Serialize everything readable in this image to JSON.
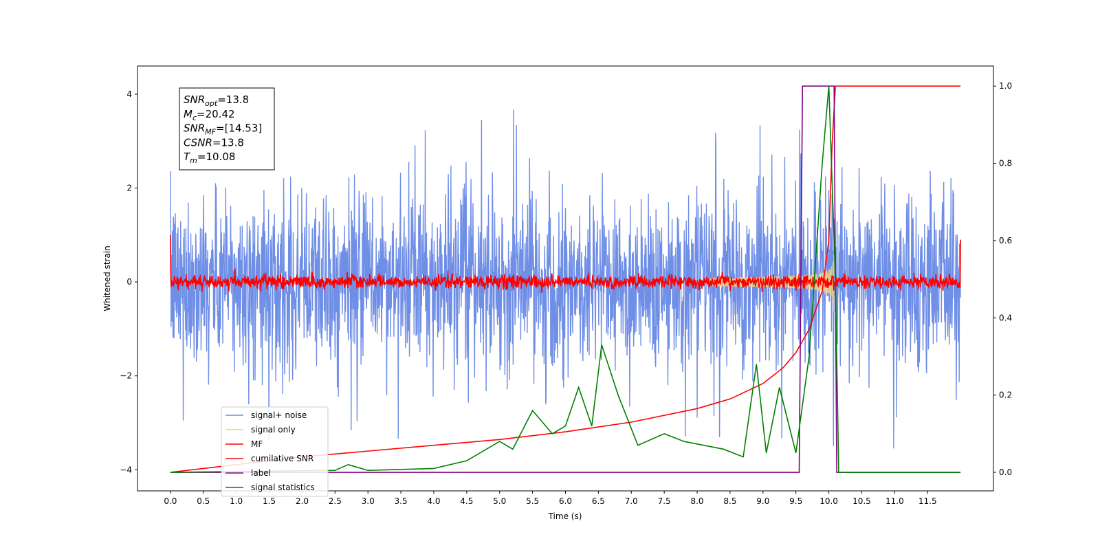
{
  "chart_data": {
    "type": "line",
    "title": "",
    "xlabel": "Time (s)",
    "ylabel": "Whitened strain",
    "xlim": [
      -0.5,
      12.5
    ],
    "xticks": [
      "0.0",
      "0.5",
      "1.0",
      "1.5",
      "2.0",
      "2.5",
      "3.0",
      "3.5",
      "4.0",
      "4.5",
      "5.0",
      "5.5",
      "6.0",
      "6.5",
      "7.0",
      "7.5",
      "8.0",
      "8.5",
      "9.0",
      "9.5",
      "10.0",
      "10.5",
      "11.0",
      "11.5"
    ],
    "ylim": [
      -4.45,
      4.6
    ],
    "yticks": [
      "4",
      "2",
      "0",
      "−2",
      "−4"
    ],
    "y2lim": [
      -0.048,
      1.052
    ],
    "y2ticks": [
      "1.0",
      "0.8",
      "0.6",
      "0.4",
      "0.2",
      "0.0"
    ],
    "grid": false,
    "legend_position": "lower-left",
    "annotation": {
      "lines": [
        {
          "sym": "SNR",
          "sub": "opt",
          "value": "=13.8"
        },
        {
          "sym": "M",
          "sub": "c",
          "value": "=20.42"
        },
        {
          "sym": "SNR",
          "sub": "MF",
          "value": "=[14.53]"
        },
        {
          "sym": "CSNR",
          "sub": "",
          "value": "=13.8"
        },
        {
          "sym": "T",
          "sub": "m",
          "value": "=10.08"
        }
      ]
    },
    "series": [
      {
        "name": "signal+ noise",
        "axis": "left",
        "color": "#6f8ee6",
        "noise_amplitude": 1.8,
        "t_start": 0.0,
        "t_end": 12.0
      },
      {
        "name": "signal only",
        "axis": "left",
        "color": "#f5cf7e",
        "peak_time": 10.08,
        "peak_amplitude": 0.7
      },
      {
        "name": "MF",
        "axis": "left",
        "color": "#ff0000",
        "baseline": 0.0,
        "noise_amplitude": 0.12
      },
      {
        "name": "cumilative SNR",
        "axis": "right",
        "color": "#ff0000",
        "x": [
          0.0,
          1.0,
          2.0,
          3.0,
          4.0,
          5.0,
          6.0,
          7.0,
          8.0,
          8.5,
          9.0,
          9.3,
          9.5,
          9.7,
          9.9,
          10.0,
          10.05,
          10.1,
          12.0
        ],
        "y": [
          0.0,
          0.02,
          0.04,
          0.055,
          0.07,
          0.085,
          0.105,
          0.13,
          0.165,
          0.19,
          0.23,
          0.27,
          0.31,
          0.37,
          0.47,
          0.6,
          0.85,
          1.0,
          1.0
        ]
      },
      {
        "name": "label",
        "axis": "right",
        "color": "#800080",
        "x": [
          0.0,
          9.55,
          9.6,
          10.08,
          10.12,
          12.0
        ],
        "y": [
          0.0,
          0.0,
          1.0,
          1.0,
          0.0,
          0.0
        ]
      },
      {
        "name": "signal statistics",
        "axis": "right",
        "color": "#008000",
        "x": [
          0.0,
          2.5,
          2.7,
          3.0,
          4.0,
          4.5,
          5.0,
          5.2,
          5.5,
          5.8,
          6.0,
          6.2,
          6.4,
          6.55,
          6.8,
          7.1,
          7.5,
          7.8,
          8.1,
          8.4,
          8.7,
          8.9,
          9.05,
          9.25,
          9.5,
          9.7,
          9.9,
          10.0,
          10.1,
          10.15,
          12.0
        ],
        "y": [
          0.0,
          0.005,
          0.02,
          0.005,
          0.01,
          0.03,
          0.08,
          0.06,
          0.16,
          0.1,
          0.12,
          0.22,
          0.12,
          0.33,
          0.2,
          0.07,
          0.1,
          0.08,
          0.07,
          0.06,
          0.04,
          0.28,
          0.05,
          0.22,
          0.05,
          0.3,
          0.8,
          1.0,
          0.5,
          0.0,
          0.0
        ]
      }
    ]
  }
}
